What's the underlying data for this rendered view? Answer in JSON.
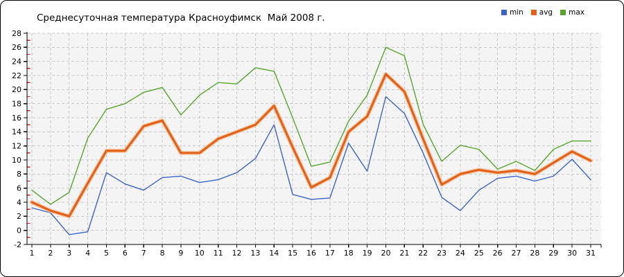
{
  "page": {
    "background": "#ffffff",
    "border_color": "#000000"
  },
  "chart_data": {
    "type": "line",
    "title": "Среднесуточная температура Красноуфимск  Май 2008 г.",
    "xlabel": "",
    "ylabel": "",
    "x": [
      1,
      2,
      3,
      4,
      5,
      6,
      7,
      8,
      9,
      10,
      11,
      12,
      13,
      14,
      15,
      16,
      17,
      18,
      19,
      20,
      21,
      22,
      23,
      24,
      25,
      26,
      27,
      28,
      29,
      30,
      31
    ],
    "series": [
      {
        "name": "min",
        "color": "#3c64c8",
        "values": [
          3.2,
          2.5,
          -0.6,
          -0.2,
          8.2,
          6.6,
          5.7,
          7.5,
          7.7,
          6.8,
          7.2,
          8.2,
          10.2,
          15.0,
          5.1,
          4.4,
          4.6,
          12.4,
          8.4,
          19.0,
          16.6,
          11.0,
          4.7,
          2.8,
          5.7,
          7.4,
          7.7,
          7.0,
          7.7,
          10.1,
          7.2
        ]
      },
      {
        "name": "avg",
        "color": "#e2611b",
        "halo_color": "#f8c69e",
        "values": [
          4.0,
          2.8,
          2.0,
          6.7,
          11.3,
          11.3,
          14.8,
          15.6,
          11.0,
          11.0,
          13.0,
          14.0,
          15.0,
          17.7,
          11.8,
          6.1,
          7.5,
          14.0,
          16.2,
          22.2,
          19.7,
          13.0,
          6.5,
          8.0,
          8.6,
          8.2,
          8.5,
          8.0,
          9.6,
          11.2,
          9.9
        ]
      },
      {
        "name": "max",
        "color": "#58a42e",
        "values": [
          5.7,
          3.7,
          5.4,
          13.1,
          17.2,
          18.0,
          19.6,
          20.3,
          16.4,
          19.2,
          21.0,
          20.8,
          23.1,
          22.6,
          16.0,
          9.1,
          9.7,
          15.5,
          19.2,
          26.0,
          24.8,
          15.1,
          9.8,
          12.1,
          11.5,
          8.7,
          9.8,
          8.5,
          11.5,
          12.7,
          12.7
        ]
      }
    ],
    "ylim": [
      -2,
      28
    ],
    "y_tick_step": 2,
    "grid": "dashed",
    "legend_position": "top-right",
    "plot_bg": "#f4f4f4",
    "grid_color": "#c9c9c9",
    "axis_color": "#000000",
    "minor_tick_color": "#cc2222"
  }
}
